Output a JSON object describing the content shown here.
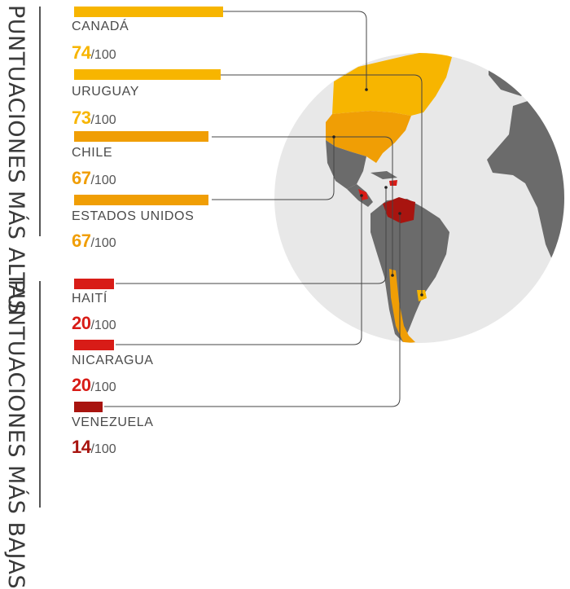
{
  "sections": {
    "highest_label": "PUNTUACIONES MÁS ALTAS",
    "lowest_label": "PUNTUACIONES MÁS BAJAS"
  },
  "score_suffix": "/100",
  "countries": [
    {
      "name": "CANADÁ",
      "score": 74,
      "max": 100,
      "color": "#f7b500"
    },
    {
      "name": "URUGUAY",
      "score": 73,
      "max": 100,
      "color": "#f7b500"
    },
    {
      "name": "CHILE",
      "score": 67,
      "max": 100,
      "color": "#f09e05"
    },
    {
      "name": "ESTADOS UNIDOS",
      "score": 67,
      "max": 100,
      "color": "#f09e05"
    },
    {
      "name": "HAITÍ",
      "score": 20,
      "max": 100,
      "color": "#d81c17"
    },
    {
      "name": "NICARAGUA",
      "score": 20,
      "max": 100,
      "color": "#d81c17"
    },
    {
      "name": "VENEZUELA",
      "score": 14,
      "max": 100,
      "color": "#a8140f"
    }
  ],
  "colors": {
    "globe": "#e8e8e8",
    "land": "#6b6b6b",
    "leader_line": "#444444"
  }
}
